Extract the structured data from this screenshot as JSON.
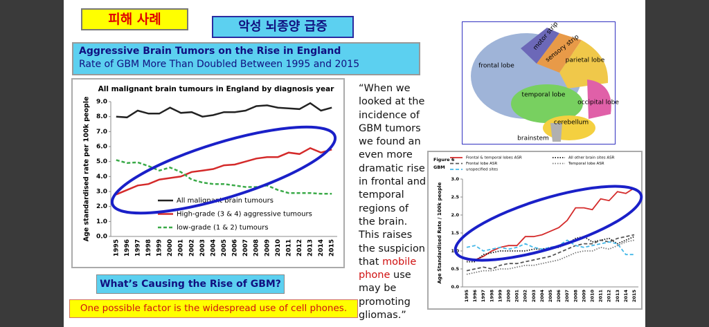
{
  "header": {
    "tag": "피해 사례",
    "topic": "악성 뇌종양 급증"
  },
  "banner": {
    "title": "Aggressive Brain Tumors on the Rise in England",
    "subtitle": "Rate of GBM More Than Doubled Between 1995 and 2015"
  },
  "quote": {
    "before": "“When we looked at the incidence of GBM tumors we found an even more dramatic rise in frontal and temporal regions of the brain. This raises the suspicion that",
    "highlight": "mobile phone",
    "after": "use may be promoting gliomas.”"
  },
  "question": "What’s Causing the Rise of GBM?",
  "answer": "One possible factor is the widespread use of cell phones.",
  "brain": {
    "labels": [
      "frontal lobe",
      "motor strip",
      "sensory strip",
      "parietal lobe",
      "temporal lobe",
      "occipital lobe",
      "cerebellum",
      "brainstem"
    ]
  },
  "chart_data": [
    {
      "type": "line",
      "title": "All malignant brain tumours in England by diagnosis year",
      "y_label": "Age standardised rate per 100k people",
      "categories": [
        "1995",
        "1996",
        "1997",
        "1998",
        "1999",
        "2000",
        "2001",
        "2002",
        "2003",
        "2004",
        "2005",
        "2006",
        "2007",
        "2008",
        "2009",
        "2010",
        "2011",
        "2012",
        "2013",
        "2014",
        "2015"
      ],
      "ylim": [
        0,
        9
      ],
      "yticks": [
        {
          "value": 0,
          "label": "0.0"
        },
        {
          "value": 1,
          "label": "1.0"
        },
        {
          "value": 2,
          "label": "2.0"
        },
        {
          "value": 3,
          "label": "3.0"
        },
        {
          "value": 4,
          "label": "4.0"
        },
        {
          "value": 5,
          "label": "5.0"
        },
        {
          "value": 6,
          "label": "6.0"
        },
        {
          "value": 7,
          "label": "7.0"
        },
        {
          "value": 8,
          "label": "8.0"
        },
        {
          "value": 9,
          "label": "9.0"
        }
      ],
      "grid": false,
      "series": [
        {
          "name": "All malignant brain tumours",
          "color": "#222222",
          "dash": "solid",
          "values": [
            8.0,
            7.95,
            8.4,
            8.2,
            8.2,
            8.6,
            8.25,
            8.3,
            8.0,
            8.1,
            8.3,
            8.3,
            8.4,
            8.7,
            8.75,
            8.6,
            8.55,
            8.5,
            8.9,
            8.4,
            8.6
          ]
        },
        {
          "name": "High-grade (3 & 4) aggressive tumours",
          "color": "#d42a2a",
          "dash": "solid",
          "values": [
            2.8,
            3.1,
            3.4,
            3.5,
            3.8,
            3.9,
            4.0,
            4.3,
            4.4,
            4.5,
            4.75,
            4.8,
            5.0,
            5.2,
            5.3,
            5.3,
            5.6,
            5.5,
            5.9,
            5.6,
            5.8
          ]
        },
        {
          "name": "low-grade (1 & 2) tumours",
          "color": "#3aaa48",
          "dash": "dashed",
          "values": [
            5.1,
            4.9,
            4.95,
            4.7,
            4.4,
            4.6,
            4.3,
            3.8,
            3.6,
            3.5,
            3.5,
            3.4,
            3.3,
            3.3,
            3.4,
            3.1,
            2.9,
            2.9,
            2.9,
            2.85,
            2.85
          ]
        }
      ]
    },
    {
      "type": "line",
      "title": "Figure 6",
      "subtitle": "GBM",
      "y_label": "Age Standardised Rate / 100k people",
      "categories": [
        "1995",
        "1996",
        "1997",
        "1998",
        "1999",
        "2000",
        "2001",
        "2002",
        "2003",
        "2004",
        "2005",
        "2006",
        "2007",
        "2008",
        "2009",
        "2010",
        "2011",
        "2012",
        "2013",
        "2014",
        "2015"
      ],
      "ylim": [
        0,
        3
      ],
      "yticks": [
        {
          "value": 0,
          "label": "0.0"
        },
        {
          "value": 0.5,
          "label": "0.5"
        },
        {
          "value": 1,
          "label": "1.0"
        },
        {
          "value": 1.5,
          "label": "1.5"
        },
        {
          "value": 2,
          "label": "2.0"
        },
        {
          "value": 2.5,
          "label": "2.5"
        },
        {
          "value": 3,
          "label": "3.0"
        }
      ],
      "grid": false,
      "series": [
        {
          "name": "Frontal & temporal lobes ASR",
          "color": "#d42a2a",
          "dash": "solid",
          "values": [
            0.75,
            0.75,
            0.85,
            1.0,
            1.1,
            1.15,
            1.15,
            1.4,
            1.4,
            1.45,
            1.55,
            1.65,
            1.85,
            2.2,
            2.2,
            2.15,
            2.45,
            2.4,
            2.65,
            2.6,
            2.75
          ]
        },
        {
          "name": "All other brain sites ASR",
          "color": "#111111",
          "dash": "dotted",
          "values": [
            0.7,
            0.7,
            0.9,
            0.95,
            1.0,
            1.0,
            1.0,
            1.0,
            1.05,
            1.05,
            1.1,
            1.1,
            1.2,
            1.35,
            1.4,
            1.25,
            1.3,
            1.35,
            1.2,
            1.3,
            1.4
          ]
        },
        {
          "name": "Frontal lobe ASR",
          "color": "#555555",
          "dash": "dashed",
          "values": [
            0.45,
            0.5,
            0.55,
            0.5,
            0.6,
            0.65,
            0.65,
            0.7,
            0.75,
            0.8,
            0.85,
            0.95,
            1.05,
            1.15,
            1.2,
            1.2,
            1.3,
            1.25,
            1.35,
            1.4,
            1.45
          ]
        },
        {
          "name": "Temporal lobe ASR",
          "color": "#777777",
          "dash": "dotted",
          "values": [
            0.35,
            0.4,
            0.45,
            0.45,
            0.5,
            0.5,
            0.55,
            0.6,
            0.6,
            0.65,
            0.7,
            0.75,
            0.85,
            0.95,
            1.0,
            1.0,
            1.1,
            1.05,
            1.15,
            1.25,
            1.3
          ]
        },
        {
          "name": "unspecified sites",
          "color": "#44b8e8",
          "dash": "dashed",
          "values": [
            1.1,
            1.15,
            1.0,
            1.05,
            1.1,
            1.05,
            1.1,
            1.2,
            1.1,
            1.05,
            1.1,
            1.15,
            1.3,
            1.15,
            1.1,
            1.15,
            1.2,
            1.25,
            1.2,
            0.9,
            0.9
          ]
        }
      ]
    }
  ]
}
